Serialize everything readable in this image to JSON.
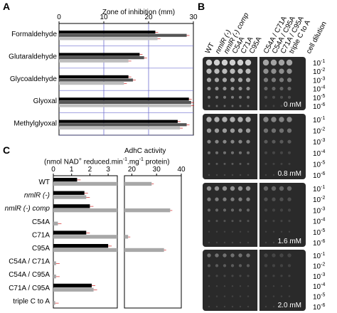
{
  "panel_letters": {
    "a": "A",
    "b": "B",
    "c": "C"
  },
  "chart_data": [
    {
      "type": "bar",
      "panel": "A",
      "title": "Zone of inhibition (mm)",
      "orientation": "horizontal",
      "xlim": [
        0,
        30
      ],
      "ticks": [
        0,
        10,
        20,
        30
      ],
      "categories": [
        "Formaldehyde",
        "Glutaraldehyde",
        "Glycoaldehyde",
        "Glyoxal",
        "Methylglyoxal"
      ],
      "series": [
        {
          "color": "#000000",
          "values": [
            21.5,
            18.0,
            15.5,
            29.0,
            26.5
          ]
        },
        {
          "color": "#555555",
          "values": [
            28.5,
            19.0,
            16.5,
            29.5,
            28.5
          ]
        },
        {
          "color": "#bdbdbd",
          "values": [
            22.0,
            15.5,
            14.5,
            29.5,
            27.0
          ]
        }
      ],
      "grid": true
    },
    {
      "type": "bar",
      "panel": "C",
      "title": "AdhC activity",
      "ylabel": "(nmol NAD+ reduced.min-1.mg-1 protein)",
      "orientation": "horizontal",
      "broken_axis": true,
      "segments": [
        {
          "range": [
            0,
            3.5
          ],
          "ticks": [
            0,
            1,
            2,
            3
          ]
        },
        {
          "range": [
            17,
            40
          ],
          "ticks": [
            20,
            30,
            40
          ]
        }
      ],
      "categories": [
        "WT",
        "nmlR (-)",
        "nmlR (-) comp",
        "C54A",
        "C71A",
        "C95A",
        "C54A / C71A",
        "C54A / C95A",
        "C71A / C95A",
        "triple C to A"
      ],
      "italic_categories": [
        "nmlR (-)",
        "nmlR (-) comp"
      ],
      "series": [
        {
          "color": "#000000",
          "values": [
            1.3,
            1.7,
            2.0,
            0.0,
            1.8,
            3.0,
            0.0,
            0.0,
            2.1,
            0.0
          ]
        },
        {
          "color": "#a8a8a8",
          "values": [
            28.0,
            1.8,
            35.5,
            0.25,
            18.5,
            33.0,
            0.15,
            0.15,
            2.2,
            0.1
          ]
        }
      ],
      "grid": false
    }
  ],
  "panel_b": {
    "column_labels": [
      "WT",
      "nmlR (-)",
      "nmlR (-) comp",
      "C54A",
      "C71A",
      "C95A",
      "C54A / C71A",
      "C54A / C95A",
      "C71A / C95A",
      "triple C to A"
    ],
    "dilution_header": "cell dilution",
    "dilutions": [
      "10-1",
      "10-2",
      "10-3",
      "10-4",
      "10-5",
      "10-6"
    ],
    "concentrations": [
      "0 mM",
      "0.8 mM",
      "1.6 mM",
      "2.0 mM"
    ],
    "colony_color": "#d9d9d9",
    "plate_color": "#2b2b2b"
  }
}
